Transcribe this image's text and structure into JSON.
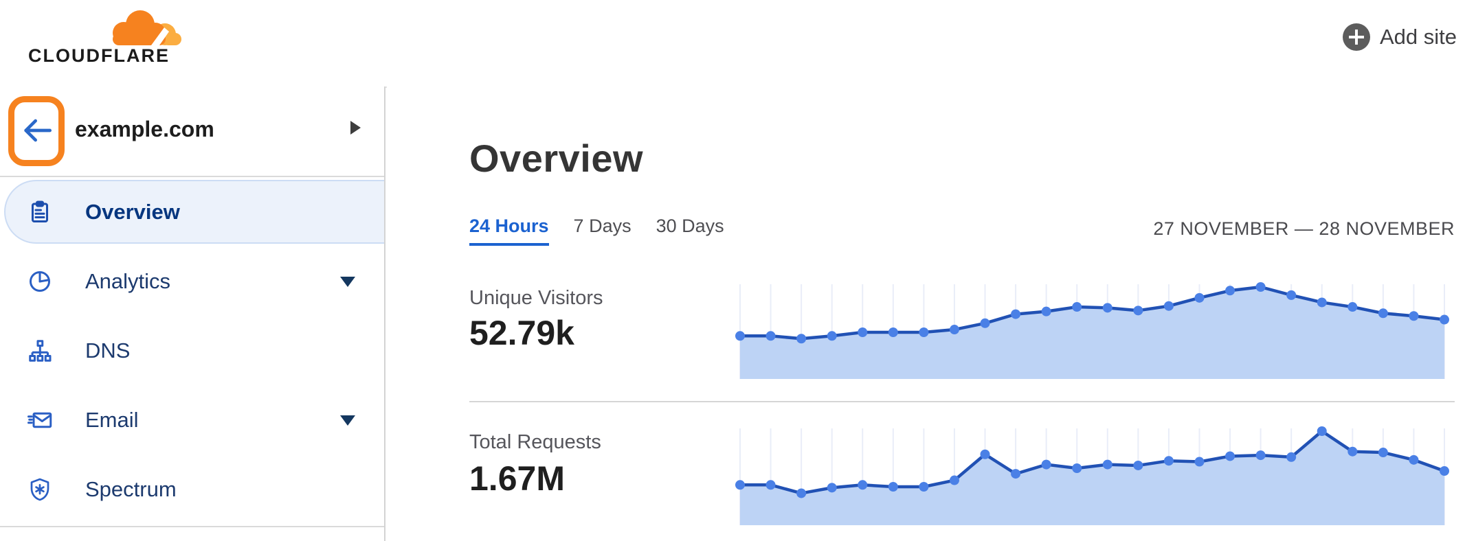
{
  "header": {
    "logo_text": "CLOUDFLARE",
    "add_site_label": "Add site"
  },
  "sidebar": {
    "site_name": "example.com",
    "items": [
      {
        "label": "Overview",
        "icon": "clipboard-icon",
        "selected": true,
        "has_caret": false
      },
      {
        "label": "Analytics",
        "icon": "pie-chart-icon",
        "selected": false,
        "has_caret": true
      },
      {
        "label": "DNS",
        "icon": "sitemap-icon",
        "selected": false,
        "has_caret": false
      },
      {
        "label": "Email",
        "icon": "email-icon",
        "selected": false,
        "has_caret": true
      },
      {
        "label": "Spectrum",
        "icon": "shield-icon",
        "selected": false,
        "has_caret": false
      }
    ]
  },
  "main": {
    "title": "Overview",
    "tabs": [
      {
        "label": "24 Hours",
        "active": true
      },
      {
        "label": "7 Days",
        "active": false
      },
      {
        "label": "30 Days",
        "active": false
      }
    ],
    "date_range": "27 NOVEMBER — 28 NOVEMBER",
    "metrics": [
      {
        "label": "Unique Visitors",
        "value": "52.79k"
      },
      {
        "label": "Total Requests",
        "value": "1.67M"
      }
    ]
  },
  "colors": {
    "brand_orange": "#f6821f",
    "brand_orange_light": "#fbad41",
    "accent_blue": "#1b62d0",
    "nav_navy": "#06367f",
    "chart_line": "#2151b4",
    "chart_dot": "#4a80e6",
    "chart_fill": "#bdd3f5",
    "chart_grid": "#e9edf8",
    "divider_gray": "#d5d5d5"
  },
  "chart_data": [
    {
      "type": "area",
      "title": "Unique Visitors",
      "total_label": "52.79k",
      "x_axis": "hourly samples, 24-hour window (27 November — 28 November)",
      "n_points": 24,
      "units": "percent of series max (sparkline has no y-axis labels)",
      "values_percent_of_max": [
        46,
        46,
        43,
        46,
        50,
        50,
        50,
        53,
        60,
        70,
        73,
        78,
        77,
        74,
        79,
        88,
        96,
        100,
        91,
        83,
        78,
        71,
        68,
        64
      ],
      "grid": "vertical gridline at every point",
      "legend": "none"
    },
    {
      "type": "area",
      "title": "Total Requests",
      "total_label": "1.67M",
      "x_axis": "hourly samples, 24-hour window (27 November — 28 November)",
      "n_points": 24,
      "units": "percent of series max (sparkline has no y-axis labels)",
      "values_percent_of_max": [
        42,
        42,
        33,
        39,
        42,
        40,
        40,
        47,
        75,
        54,
        64,
        60,
        64,
        63,
        68,
        67,
        73,
        74,
        72,
        100,
        78,
        77,
        69,
        57
      ],
      "grid": "vertical gridline at every point",
      "legend": "none"
    }
  ]
}
